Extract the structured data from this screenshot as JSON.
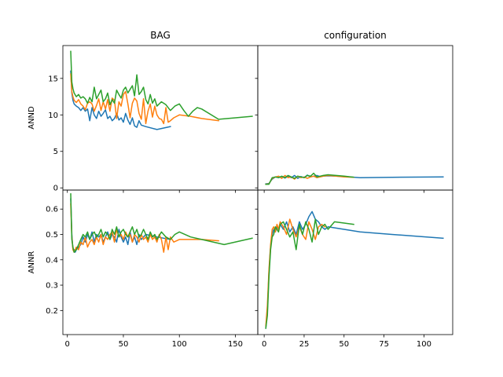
{
  "chart_data": [
    {
      "type": "line",
      "title": "BAG",
      "ylabel": "ANND",
      "xlabel": "",
      "xlim": [
        -4,
        170
      ],
      "ylim": [
        -0.3,
        19.5
      ],
      "xticks": [
        0,
        50,
        100,
        150
      ],
      "yticks": [
        0,
        5,
        10,
        15
      ],
      "xtick_labels_visible": false,
      "ytick_labels_visible": true,
      "series": [
        {
          "color": "#1f77b4",
          "x": [
            3,
            4,
            5,
            6,
            8,
            10,
            12,
            14,
            16,
            18,
            20,
            22,
            24,
            26,
            28,
            30,
            32,
            34,
            36,
            38,
            40,
            42,
            44,
            46,
            48,
            50,
            52,
            54,
            56,
            58,
            60,
            62,
            64,
            66,
            70,
            80,
            92
          ],
          "y": [
            16,
            13,
            12,
            11.5,
            11.2,
            11,
            10.6,
            11,
            10.5,
            10.8,
            9.2,
            11,
            10,
            9.5,
            10.5,
            9.8,
            10.2,
            10.7,
            9.5,
            9.8,
            9.2,
            9.5,
            10.2,
            9.3,
            9.6,
            9.0,
            10.2,
            9.3,
            8.7,
            9.6,
            8.5,
            8.3,
            9.2,
            8.6,
            8.4,
            8.0,
            8.4
          ]
        },
        {
          "color": "#ff7f0e",
          "x": [
            3,
            4,
            5,
            6,
            8,
            10,
            12,
            14,
            16,
            18,
            20,
            22,
            24,
            26,
            28,
            30,
            32,
            34,
            36,
            38,
            40,
            42,
            44,
            46,
            48,
            50,
            52,
            54,
            56,
            58,
            60,
            62,
            64,
            66,
            68,
            70,
            72,
            74,
            76,
            78,
            80,
            82,
            84,
            86,
            88,
            90,
            92,
            95,
            100,
            110,
            120,
            135
          ],
          "y": [
            15.6,
            13.2,
            12.5,
            12,
            11.7,
            12.1,
            11.5,
            11.2,
            10.7,
            11.6,
            11.8,
            11.5,
            10.5,
            11.3,
            12.2,
            10.6,
            11.8,
            10.8,
            12.1,
            10.5,
            12.3,
            12,
            9.5,
            11.8,
            11.2,
            12.8,
            13.2,
            11.5,
            9.6,
            11.6,
            12.3,
            11.9,
            10.2,
            9.4,
            12.2,
            8.8,
            10.5,
            11.5,
            9.7,
            11.2,
            10.0,
            9.5,
            9.4,
            8.8,
            11.0,
            9.0,
            9.2,
            9.6,
            10.0,
            9.8,
            9.5,
            9.2
          ]
        },
        {
          "color": "#2ca02c",
          "x": [
            3,
            4,
            5,
            6,
            8,
            10,
            12,
            14,
            16,
            18,
            20,
            22,
            24,
            26,
            28,
            30,
            32,
            34,
            36,
            38,
            40,
            42,
            44,
            46,
            48,
            50,
            52,
            54,
            56,
            58,
            60,
            62,
            64,
            66,
            68,
            70,
            72,
            74,
            76,
            78,
            80,
            84,
            88,
            92,
            96,
            100,
            104,
            108,
            112,
            116,
            120,
            135,
            150,
            165
          ],
          "y": [
            18.7,
            14.5,
            13.6,
            13,
            12.5,
            12.8,
            12.3,
            12.5,
            12.2,
            11.6,
            12.4,
            11.8,
            13.8,
            12.2,
            12.8,
            13.4,
            11.8,
            12.2,
            13,
            11.4,
            12.1,
            11.6,
            13.4,
            12.8,
            12.3,
            13.4,
            13.8,
            13,
            13.5,
            14,
            12.6,
            15.5,
            12.8,
            13.2,
            13.8,
            12.1,
            11.5,
            12.8,
            11.6,
            12.2,
            11.2,
            11.8,
            11.4,
            10.6,
            11.2,
            11.5,
            10.6,
            9.8,
            10.5,
            11,
            10.8,
            9.4,
            9.6,
            9.8
          ]
        }
      ]
    },
    {
      "type": "line",
      "title": "configuration",
      "ylabel": "",
      "xlabel": "",
      "xlim": [
        -4,
        118
      ],
      "ylim": [
        -0.3,
        19.5
      ],
      "xticks": [
        0,
        25,
        50,
        75,
        100
      ],
      "yticks": [
        0,
        5,
        10,
        15
      ],
      "xtick_labels_visible": false,
      "ytick_labels_visible": false,
      "series": [
        {
          "color": "#1f77b4",
          "x": [
            1,
            3,
            5,
            7,
            9,
            11,
            13,
            15,
            17,
            19,
            21,
            23,
            25,
            27,
            29,
            31,
            33,
            35,
            37,
            40,
            45,
            50,
            60,
            80,
            112
          ],
          "y": [
            0.55,
            0.6,
            1.2,
            1.5,
            1.4,
            1.55,
            1.35,
            1.6,
            1.4,
            1.7,
            1.3,
            1.55,
            1.4,
            1.75,
            1.5,
            1.6,
            1.7,
            1.55,
            1.6,
            1.65,
            1.6,
            1.55,
            1.4,
            1.45,
            1.5
          ]
        },
        {
          "color": "#ff7f0e",
          "x": [
            1,
            3,
            5,
            7,
            9,
            11,
            13,
            15,
            17,
            19,
            21,
            23,
            25,
            27,
            29,
            31,
            33,
            35,
            37,
            40,
            45,
            50,
            56
          ],
          "y": [
            0.5,
            0.55,
            1.3,
            1.5,
            1.6,
            1.3,
            1.7,
            1.4,
            1.5,
            1.2,
            1.6,
            1.4,
            1.5,
            1.3,
            1.5,
            1.6,
            1.4,
            1.5,
            1.6,
            1.7,
            1.6,
            1.5,
            1.45
          ]
        },
        {
          "color": "#2ca02c",
          "x": [
            1,
            3,
            5,
            7,
            9,
            11,
            13,
            15,
            17,
            19,
            21,
            23,
            25,
            27,
            29,
            31,
            33,
            35,
            37,
            40,
            45,
            50,
            56
          ],
          "y": [
            0.5,
            0.5,
            1.4,
            1.5,
            1.4,
            1.6,
            1.4,
            1.7,
            1.5,
            1.3,
            1.6,
            1.5,
            1.4,
            1.7,
            1.6,
            2.0,
            1.5,
            1.6,
            1.7,
            1.8,
            1.7,
            1.6,
            1.45
          ]
        }
      ]
    },
    {
      "type": "line",
      "title": "",
      "ylabel": "ANNR",
      "xlabel": "",
      "xlim": [
        -4,
        170
      ],
      "ylim": [
        0.105,
        0.675
      ],
      "xticks": [
        0,
        50,
        100,
        150
      ],
      "yticks": [
        0.2,
        0.3,
        0.4,
        0.5,
        0.6
      ],
      "xtick_labels_visible": true,
      "ytick_labels_visible": true,
      "series": [
        {
          "color": "#1f77b4",
          "x": [
            3,
            4,
            5,
            6,
            7,
            8,
            10,
            12,
            14,
            16,
            18,
            20,
            22,
            24,
            26,
            28,
            30,
            32,
            34,
            36,
            38,
            40,
            42,
            44,
            46,
            48,
            50,
            52,
            54,
            56,
            58,
            60,
            62,
            64,
            66,
            70,
            80,
            92
          ],
          "y": [
            0.64,
            0.5,
            0.44,
            0.44,
            0.43,
            0.44,
            0.45,
            0.46,
            0.49,
            0.47,
            0.5,
            0.48,
            0.51,
            0.47,
            0.5,
            0.49,
            0.5,
            0.47,
            0.49,
            0.51,
            0.48,
            0.5,
            0.49,
            0.47,
            0.52,
            0.49,
            0.47,
            0.49,
            0.46,
            0.51,
            0.47,
            0.49,
            0.46,
            0.5,
            0.48,
            0.5,
            0.49,
            0.48
          ]
        },
        {
          "color": "#ff7f0e",
          "x": [
            3,
            4,
            5,
            6,
            7,
            8,
            10,
            12,
            14,
            16,
            18,
            20,
            22,
            24,
            26,
            28,
            30,
            32,
            34,
            36,
            38,
            40,
            42,
            44,
            46,
            48,
            50,
            52,
            54,
            56,
            58,
            60,
            62,
            64,
            66,
            68,
            70,
            72,
            74,
            76,
            78,
            80,
            82,
            84,
            86,
            88,
            90,
            92,
            95,
            100,
            110,
            120,
            135
          ],
          "y": [
            0.62,
            0.49,
            0.44,
            0.43,
            0.44,
            0.45,
            0.44,
            0.47,
            0.46,
            0.49,
            0.45,
            0.47,
            0.48,
            0.46,
            0.49,
            0.47,
            0.5,
            0.46,
            0.49,
            0.48,
            0.5,
            0.51,
            0.47,
            0.52,
            0.49,
            0.5,
            0.48,
            0.51,
            0.49,
            0.5,
            0.47,
            0.5,
            0.49,
            0.47,
            0.5,
            0.48,
            0.49,
            0.47,
            0.5,
            0.48,
            0.49,
            0.47,
            0.5,
            0.48,
            0.43,
            0.49,
            0.44,
            0.49,
            0.47,
            0.48,
            0.48,
            0.48,
            0.475
          ]
        },
        {
          "color": "#2ca02c",
          "x": [
            3,
            4,
            5,
            6,
            7,
            8,
            10,
            12,
            14,
            16,
            18,
            20,
            22,
            24,
            26,
            28,
            30,
            32,
            34,
            36,
            38,
            40,
            42,
            44,
            46,
            48,
            50,
            52,
            54,
            56,
            58,
            60,
            62,
            64,
            66,
            68,
            70,
            72,
            74,
            76,
            78,
            80,
            84,
            88,
            92,
            96,
            100,
            110,
            120,
            140,
            165
          ],
          "y": [
            0.66,
            0.48,
            0.45,
            0.43,
            0.435,
            0.44,
            0.46,
            0.48,
            0.5,
            0.49,
            0.51,
            0.48,
            0.5,
            0.51,
            0.49,
            0.5,
            0.52,
            0.49,
            0.51,
            0.5,
            0.48,
            0.52,
            0.5,
            0.53,
            0.49,
            0.51,
            0.52,
            0.5,
            0.49,
            0.51,
            0.53,
            0.5,
            0.52,
            0.49,
            0.5,
            0.52,
            0.5,
            0.48,
            0.51,
            0.49,
            0.5,
            0.48,
            0.51,
            0.49,
            0.48,
            0.5,
            0.51,
            0.49,
            0.48,
            0.46,
            0.485
          ]
        }
      ]
    },
    {
      "type": "line",
      "title": "",
      "ylabel": "",
      "xlabel": "",
      "xlim": [
        -4,
        118
      ],
      "ylim": [
        0.105,
        0.675
      ],
      "xticks": [
        0,
        25,
        50,
        75,
        100
      ],
      "yticks": [
        0.2,
        0.3,
        0.4,
        0.5,
        0.6
      ],
      "xtick_labels_visible": true,
      "ytick_labels_visible": false,
      "series": [
        {
          "color": "#1f77b4",
          "x": [
            1,
            2,
            3,
            4,
            5,
            6,
            7,
            8,
            9,
            10,
            12,
            14,
            16,
            18,
            20,
            22,
            24,
            26,
            28,
            30,
            32,
            34,
            36,
            38,
            40,
            50,
            60,
            80,
            112
          ],
          "y": [
            0.13,
            0.2,
            0.35,
            0.45,
            0.5,
            0.52,
            0.51,
            0.53,
            0.52,
            0.54,
            0.52,
            0.55,
            0.51,
            0.53,
            0.5,
            0.55,
            0.52,
            0.54,
            0.57,
            0.59,
            0.56,
            0.55,
            0.53,
            0.52,
            0.53,
            0.52,
            0.51,
            0.5,
            0.485
          ]
        },
        {
          "color": "#ff7f0e",
          "x": [
            1,
            2,
            3,
            4,
            5,
            6,
            7,
            8,
            9,
            10,
            12,
            14,
            16,
            18,
            20,
            22,
            24,
            26,
            28,
            30,
            32,
            34,
            36,
            38
          ],
          "y": [
            0.14,
            0.22,
            0.36,
            0.46,
            0.52,
            0.53,
            0.51,
            0.54,
            0.52,
            0.55,
            0.53,
            0.5,
            0.56,
            0.52,
            0.49,
            0.53,
            0.5,
            0.48,
            0.55,
            0.52,
            0.48,
            0.53,
            0.54,
            0.53
          ]
        },
        {
          "color": "#2ca02c",
          "x": [
            1,
            2,
            3,
            4,
            5,
            6,
            7,
            8,
            9,
            10,
            12,
            14,
            16,
            18,
            20,
            22,
            24,
            26,
            28,
            30,
            32,
            34,
            36,
            38,
            40,
            44,
            50,
            56
          ],
          "y": [
            0.13,
            0.18,
            0.33,
            0.44,
            0.49,
            0.5,
            0.53,
            0.52,
            0.51,
            0.54,
            0.55,
            0.52,
            0.49,
            0.51,
            0.44,
            0.54,
            0.5,
            0.55,
            0.52,
            0.47,
            0.56,
            0.5,
            0.53,
            0.54,
            0.52,
            0.55,
            0.545,
            0.54
          ]
        }
      ]
    }
  ]
}
